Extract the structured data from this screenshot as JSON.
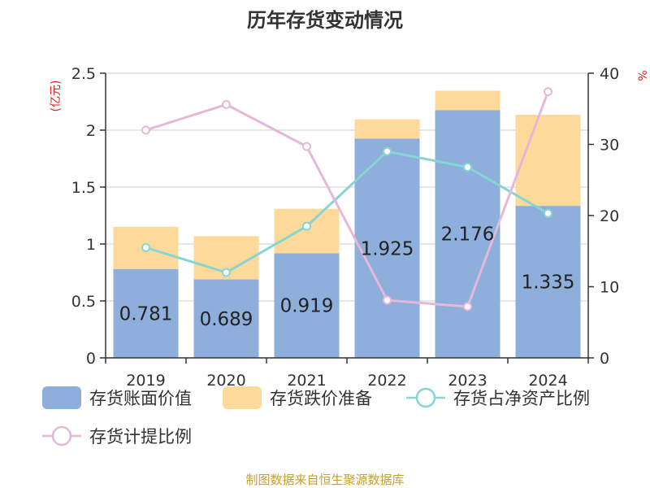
{
  "chart_data": {
    "type": "bar",
    "title": "历年存货变动情况",
    "left_axis_unit": "(亿元)",
    "right_axis_unit": "%",
    "categories": [
      "2019",
      "2020",
      "2021",
      "2022",
      "2023",
      "2024"
    ],
    "left_ylim": [
      0,
      2.5
    ],
    "left_ticks": [
      "0",
      "0.5",
      "1",
      "1.5",
      "2",
      "2.5"
    ],
    "right_ylim": [
      0,
      40
    ],
    "right_ticks": [
      "0",
      "10",
      "20",
      "30",
      "40"
    ],
    "grid": true,
    "legend_position": "bottom",
    "series": [
      {
        "name": "存货账面价值",
        "type": "bar",
        "stack": "inv",
        "axis": "left",
        "color": "#8eaedb",
        "values": [
          0.781,
          0.689,
          0.919,
          1.925,
          2.176,
          1.335
        ],
        "labels": [
          "0.781",
          "0.689",
          "0.919",
          "1.925",
          "2.176",
          "1.335"
        ]
      },
      {
        "name": "存货跌价准备",
        "type": "bar",
        "stack": "inv",
        "axis": "left",
        "color": "#fdd99a",
        "values": [
          0.37,
          0.38,
          0.39,
          0.17,
          0.17,
          0.8
        ]
      },
      {
        "name": "存货占净资产比例",
        "type": "line",
        "axis": "right",
        "color": "#86d5d3",
        "values": [
          15.5,
          12.0,
          18.5,
          29.0,
          26.8,
          20.3
        ]
      },
      {
        "name": "存货计提比例",
        "type": "line",
        "axis": "right",
        "color": "#e6b8d8",
        "values": [
          32.0,
          35.6,
          29.7,
          8.1,
          7.2,
          37.4
        ]
      }
    ],
    "source": "制图数据来自恒生聚源数据库"
  }
}
